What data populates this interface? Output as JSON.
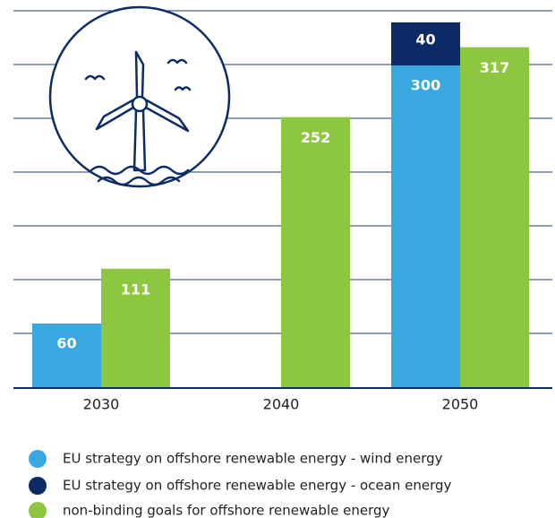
{
  "chart_data": {
    "type": "bar",
    "categories": [
      "2030",
      "2040",
      "2050"
    ],
    "series": [
      {
        "name": "EU strategy on offshore renewable energy - wind energy",
        "color": "#3aa8e0",
        "values": [
          60,
          null,
          300
        ]
      },
      {
        "name": "EU strategy on offshore renewable energy - ocean energy",
        "color": "#0b2a66",
        "values": [
          null,
          null,
          40
        ]
      },
      {
        "name": "non-binding goals for offshore renewable energy",
        "color": "#8dc63f",
        "values": [
          111,
          252,
          317
        ]
      }
    ],
    "ylim": [
      0,
      350
    ]
  }
}
